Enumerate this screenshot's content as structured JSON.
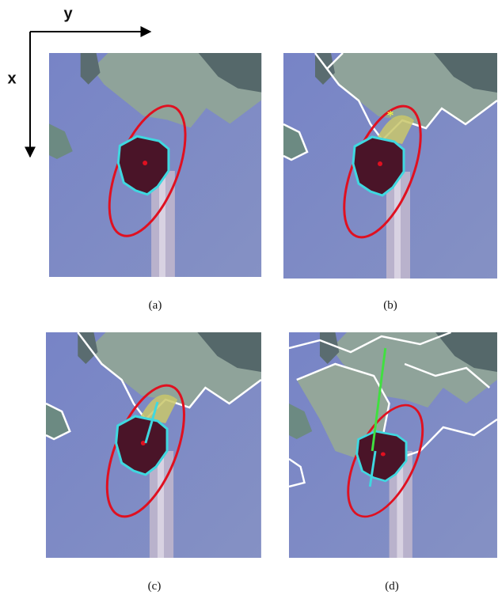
{
  "axes": {
    "x_label": "x",
    "y_label": "y"
  },
  "panels": [
    {
      "caption": "(a)"
    },
    {
      "caption": "(b)"
    },
    {
      "caption": "(c)"
    },
    {
      "caption": "(d)"
    }
  ]
}
